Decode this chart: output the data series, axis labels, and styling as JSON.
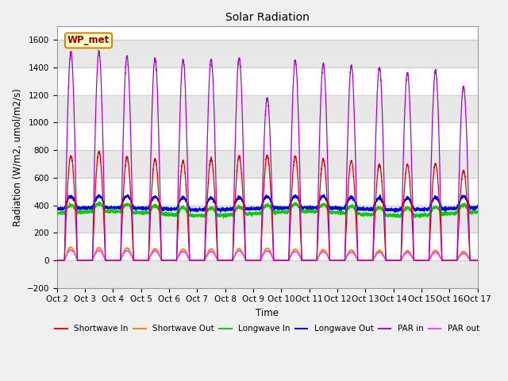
{
  "title": "Solar Radiation",
  "ylabel": "Radiation (W/m2, umol/m2/s)",
  "xlabel": "Time",
  "xlim_days": [
    0,
    15
  ],
  "ylim": [
    -200,
    1700
  ],
  "yticks": [
    -200,
    0,
    200,
    400,
    600,
    800,
    1000,
    1200,
    1400,
    1600
  ],
  "xtick_labels": [
    "Oct 2",
    "Oct 3",
    "Oct 4",
    "Oct 5",
    "Oct 6",
    "Oct 7",
    "Oct 8",
    "Oct 9",
    "Oct 10",
    "Oct 11",
    "Oct 12",
    "Oct 13",
    "Oct 14",
    "Oct 15",
    "Oct 16",
    "Oct 17"
  ],
  "grid_color": "#cccccc",
  "fig_bg_color": "#f0f0f0",
  "plot_bg_color": "#ffffff",
  "series": {
    "shortwave_in": {
      "color": "#dd0000",
      "label": "Shortwave In",
      "lw": 1.0
    },
    "shortwave_out": {
      "color": "#ff8800",
      "label": "Shortwave Out",
      "lw": 1.0
    },
    "longwave_in": {
      "color": "#00cc00",
      "label": "Longwave In",
      "lw": 1.0
    },
    "longwave_out": {
      "color": "#0000dd",
      "label": "Longwave Out",
      "lw": 1.0
    },
    "par_in": {
      "color": "#aa00cc",
      "label": "PAR in",
      "lw": 1.0
    },
    "par_out": {
      "color": "#ff44ff",
      "label": "PAR out",
      "lw": 1.0
    }
  },
  "station_label": "WP_met",
  "n_days": 15,
  "pts_per_day": 288,
  "sw_in_peaks": [
    760,
    790,
    750,
    735,
    720,
    735,
    755,
    760,
    755,
    735,
    720,
    695,
    695,
    700,
    650
  ],
  "sw_out_peaks": [
    95,
    92,
    90,
    85,
    82,
    82,
    85,
    88,
    82,
    78,
    75,
    72,
    70,
    72,
    65
  ],
  "par_in_peaks": [
    1510,
    1515,
    1480,
    1465,
    1455,
    1455,
    1470,
    1175,
    1450,
    1430,
    1415,
    1400,
    1360,
    1375,
    1260
  ],
  "par_out_peaks": [
    75,
    72,
    70,
    68,
    65,
    65,
    68,
    70,
    65,
    62,
    60,
    58,
    56,
    58,
    50
  ],
  "lw_in_base": 340,
  "lw_in_day_bump": 55,
  "lw_out_base": 375,
  "lw_out_day_bump": 85,
  "sunrise": 0.27,
  "sunset": 0.73
}
